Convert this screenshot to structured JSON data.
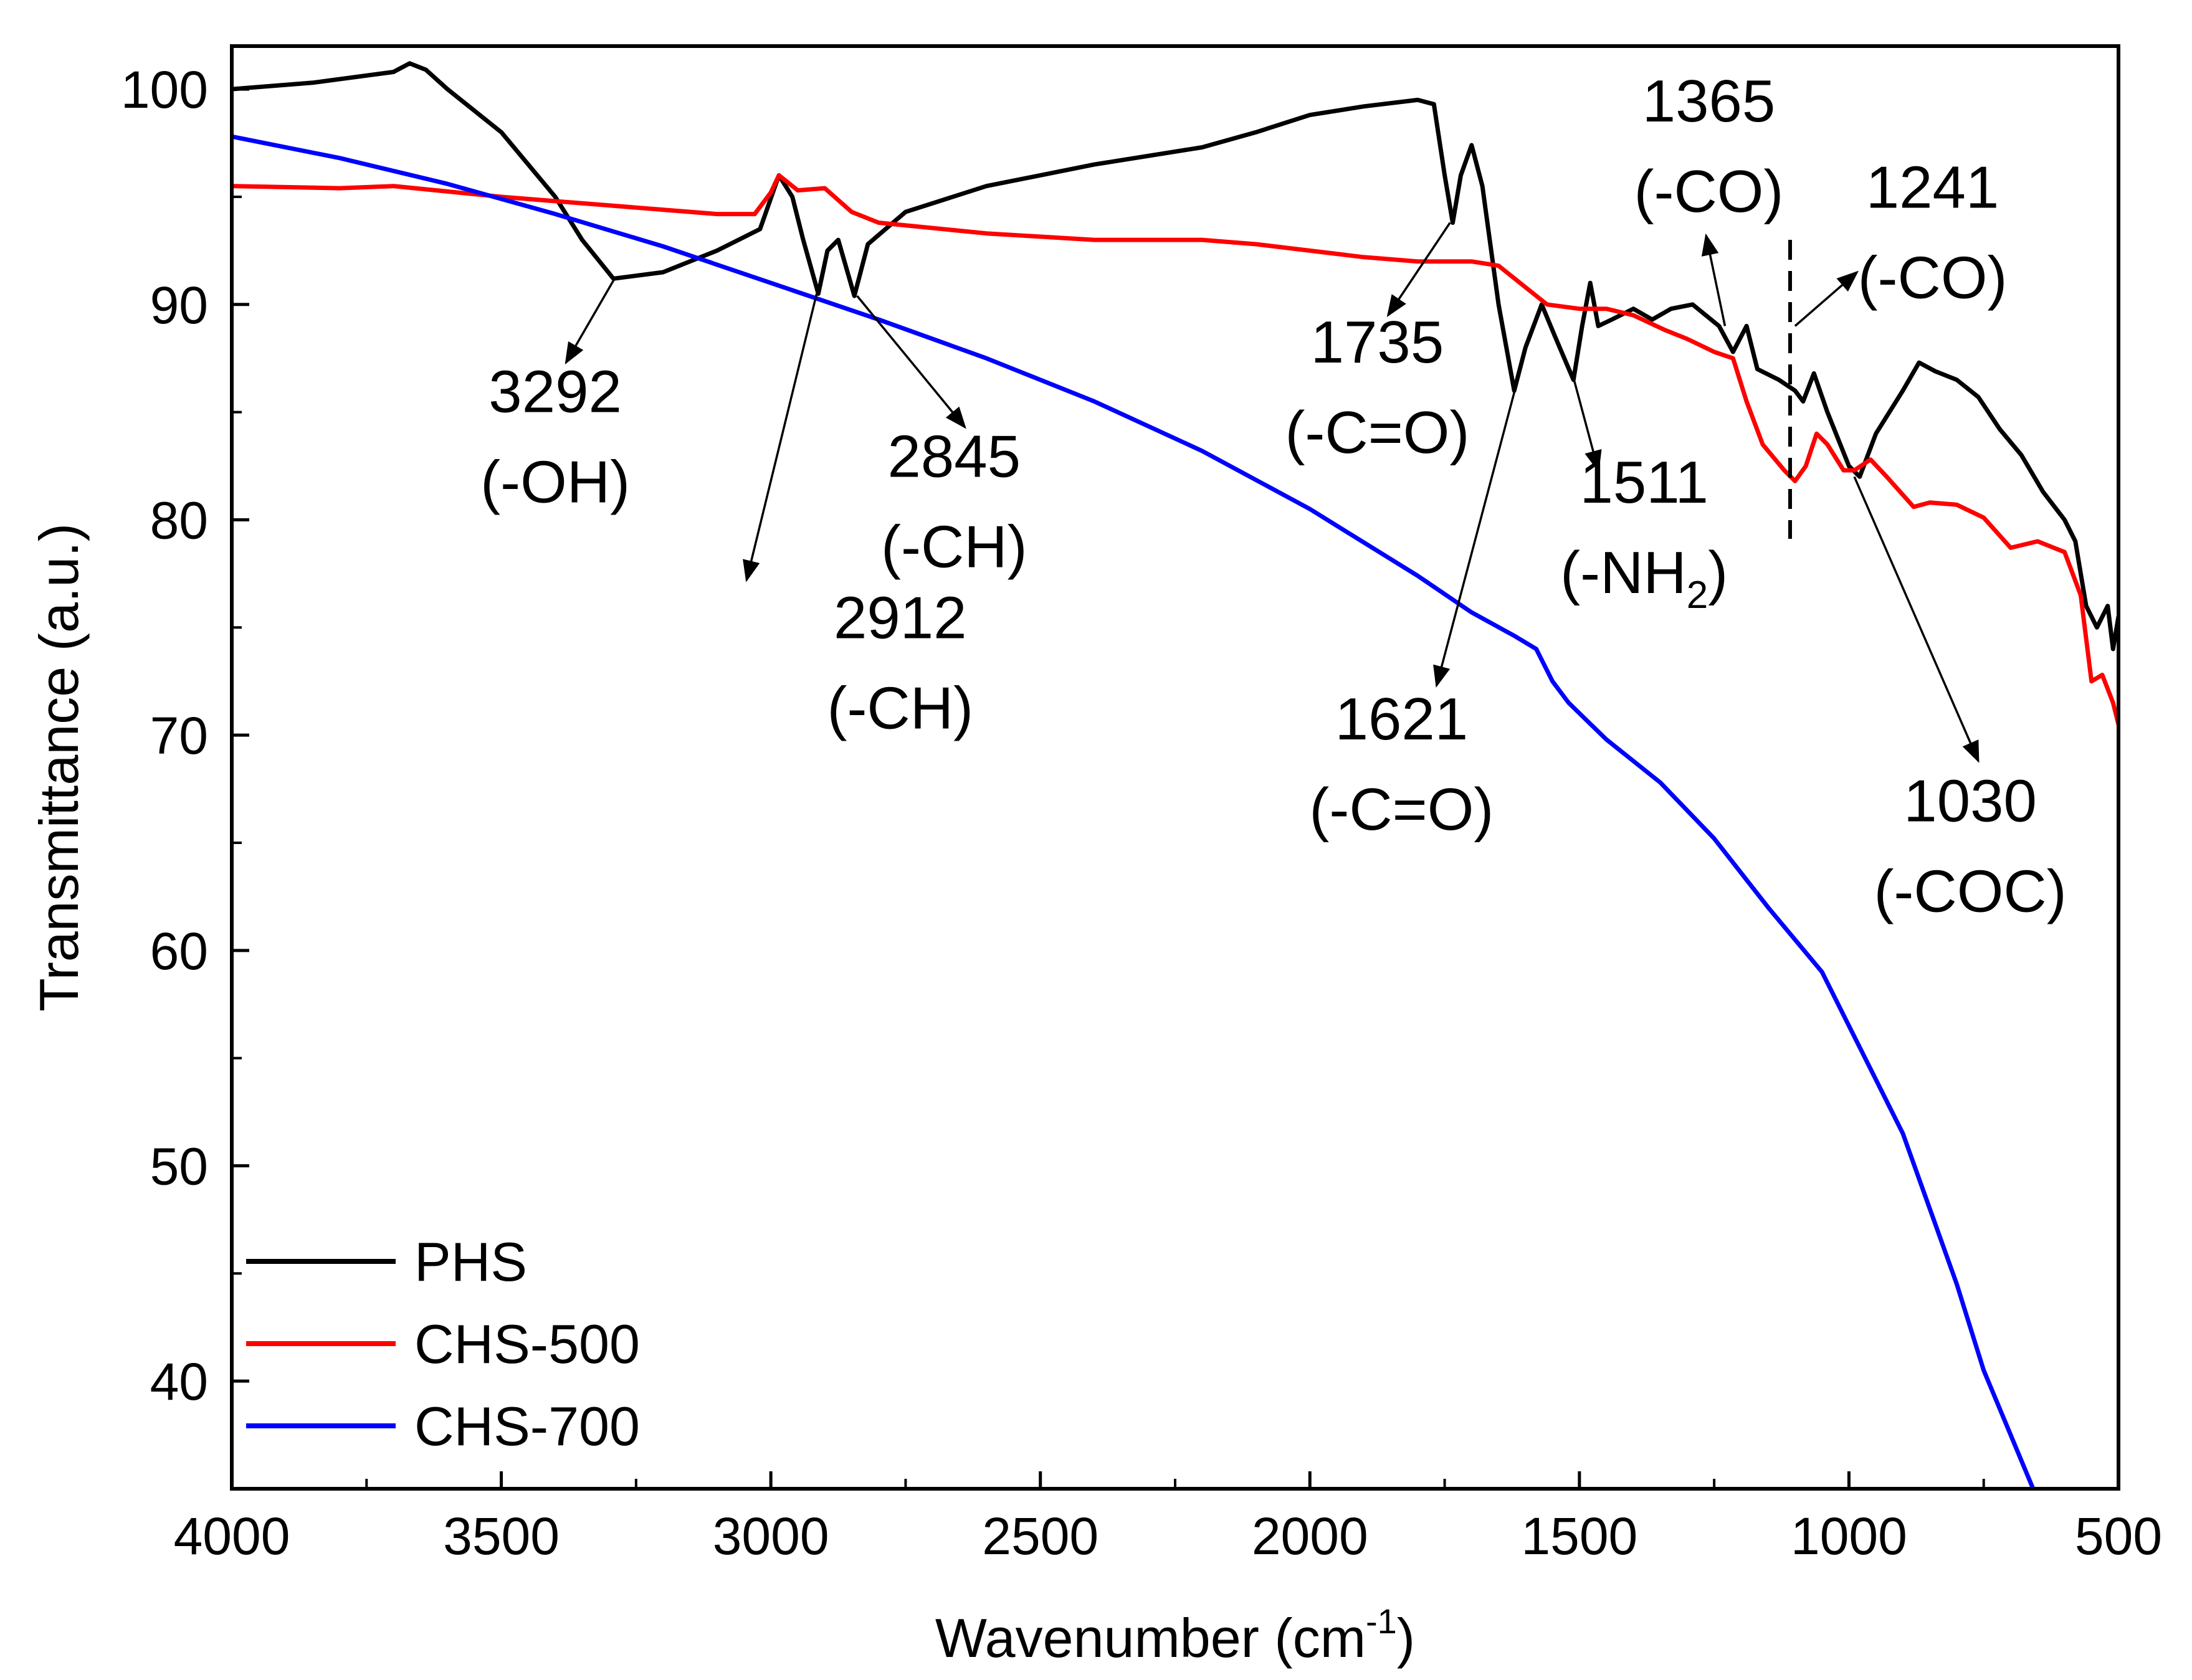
{
  "chart_data": {
    "type": "line",
    "title": "",
    "xlabel": "Wavenumber (cm",
    "xlabel_sup": "-1",
    "xlabel_tail": ")",
    "ylabel": "Transmittance (a.u.)",
    "xlim": [
      4000,
      500
    ],
    "ylim": [
      35,
      102
    ],
    "x_reversed": true,
    "grid": false,
    "x_ticks": [
      4000,
      3500,
      3000,
      2500,
      2000,
      1500,
      1000,
      500
    ],
    "y_ticks": [
      40,
      50,
      60,
      70,
      80,
      90,
      100
    ],
    "legend_position": "bottom-left",
    "series": [
      {
        "name": "PHS",
        "color": "#000000",
        "points": [
          [
            4000,
            100
          ],
          [
            3850,
            100.3
          ],
          [
            3700,
            100.8
          ],
          [
            3670,
            101.2
          ],
          [
            3640,
            100.9
          ],
          [
            3600,
            100
          ],
          [
            3500,
            98
          ],
          [
            3400,
            95
          ],
          [
            3350,
            93
          ],
          [
            3292,
            91.2
          ],
          [
            3200,
            91.5
          ],
          [
            3100,
            92.5
          ],
          [
            3020,
            93.5
          ],
          [
            2985,
            96
          ],
          [
            2960,
            95
          ],
          [
            2940,
            93
          ],
          [
            2912,
            90.5
          ],
          [
            2895,
            92.5
          ],
          [
            2875,
            93
          ],
          [
            2845,
            90.4
          ],
          [
            2820,
            92.8
          ],
          [
            2750,
            94.3
          ],
          [
            2600,
            95.5
          ],
          [
            2400,
            96.5
          ],
          [
            2200,
            97.3
          ],
          [
            2100,
            98
          ],
          [
            2000,
            98.8
          ],
          [
            1900,
            99.2
          ],
          [
            1800,
            99.5
          ],
          [
            1770,
            99.3
          ],
          [
            1750,
            96
          ],
          [
            1735,
            93.8
          ],
          [
            1720,
            96
          ],
          [
            1700,
            97.4
          ],
          [
            1680,
            95.5
          ],
          [
            1650,
            90
          ],
          [
            1621,
            86
          ],
          [
            1600,
            88
          ],
          [
            1570,
            90
          ],
          [
            1545,
            88.5
          ],
          [
            1511,
            86.5
          ],
          [
            1495,
            89
          ],
          [
            1480,
            91
          ],
          [
            1465,
            89
          ],
          [
            1440,
            89.3
          ],
          [
            1400,
            89.8
          ],
          [
            1365,
            89.3
          ],
          [
            1330,
            89.8
          ],
          [
            1290,
            90
          ],
          [
            1241,
            89
          ],
          [
            1215,
            87.8
          ],
          [
            1190,
            89
          ],
          [
            1170,
            87
          ],
          [
            1130,
            86.5
          ],
          [
            1100,
            86
          ],
          [
            1085,
            85.5
          ],
          [
            1065,
            86.8
          ],
          [
            1040,
            85
          ],
          [
            1000,
            82.5
          ],
          [
            980,
            82
          ],
          [
            950,
            84
          ],
          [
            900,
            86
          ],
          [
            870,
            87.3
          ],
          [
            840,
            86.9
          ],
          [
            800,
            86.5
          ],
          [
            760,
            85.7
          ],
          [
            720,
            84.2
          ],
          [
            680,
            83
          ],
          [
            640,
            81.3
          ],
          [
            600,
            80
          ],
          [
            580,
            79
          ],
          [
            560,
            76
          ],
          [
            540,
            75
          ],
          [
            520,
            76
          ],
          [
            510,
            74
          ],
          [
            500,
            75.5
          ]
        ]
      },
      {
        "name": "CHS-500",
        "color": "#ff0000",
        "points": [
          [
            4000,
            95.5
          ],
          [
            3800,
            95.4
          ],
          [
            3700,
            95.5
          ],
          [
            3500,
            95
          ],
          [
            3300,
            94.6
          ],
          [
            3100,
            94.2
          ],
          [
            3030,
            94.2
          ],
          [
            3000,
            95.2
          ],
          [
            2985,
            96
          ],
          [
            2950,
            95.3
          ],
          [
            2900,
            95.4
          ],
          [
            2850,
            94.3
          ],
          [
            2800,
            93.8
          ],
          [
            2600,
            93.3
          ],
          [
            2400,
            93
          ],
          [
            2200,
            93
          ],
          [
            2100,
            92.8
          ],
          [
            2000,
            92.5
          ],
          [
            1900,
            92.2
          ],
          [
            1800,
            92
          ],
          [
            1700,
            92
          ],
          [
            1650,
            91.8
          ],
          [
            1600,
            90.8
          ],
          [
            1560,
            90
          ],
          [
            1500,
            89.8
          ],
          [
            1450,
            89.8
          ],
          [
            1400,
            89.5
          ],
          [
            1340,
            88.8
          ],
          [
            1300,
            88.4
          ],
          [
            1250,
            87.8
          ],
          [
            1215,
            87.5
          ],
          [
            1190,
            85.5
          ],
          [
            1160,
            83.5
          ],
          [
            1120,
            82.3
          ],
          [
            1100,
            81.8
          ],
          [
            1080,
            82.5
          ],
          [
            1060,
            84
          ],
          [
            1040,
            83.5
          ],
          [
            1010,
            82.3
          ],
          [
            990,
            82.3
          ],
          [
            960,
            82.8
          ],
          [
            930,
            82
          ],
          [
            880,
            80.6
          ],
          [
            850,
            80.8
          ],
          [
            800,
            80.7
          ],
          [
            750,
            80.1
          ],
          [
            700,
            78.7
          ],
          [
            650,
            79
          ],
          [
            600,
            78.5
          ],
          [
            570,
            76.5
          ],
          [
            550,
            72.5
          ],
          [
            530,
            72.8
          ],
          [
            510,
            71.5
          ],
          [
            500,
            70.5
          ]
        ]
      },
      {
        "name": "CHS-700",
        "color": "#0000ff",
        "points": [
          [
            4000,
            97.8
          ],
          [
            3800,
            96.8
          ],
          [
            3600,
            95.6
          ],
          [
            3400,
            94.2
          ],
          [
            3200,
            92.7
          ],
          [
            3000,
            91
          ],
          [
            2800,
            89.3
          ],
          [
            2600,
            87.5
          ],
          [
            2400,
            85.5
          ],
          [
            2200,
            83.2
          ],
          [
            2000,
            80.5
          ],
          [
            1800,
            77.4
          ],
          [
            1700,
            75.7
          ],
          [
            1620,
            74.6
          ],
          [
            1580,
            74
          ],
          [
            1550,
            72.5
          ],
          [
            1520,
            71.5
          ],
          [
            1450,
            69.8
          ],
          [
            1350,
            67.8
          ],
          [
            1250,
            65.2
          ],
          [
            1150,
            62
          ],
          [
            1050,
            59
          ],
          [
            1000,
            56.5
          ],
          [
            950,
            54
          ],
          [
            900,
            51.5
          ],
          [
            850,
            48
          ],
          [
            800,
            44.5
          ],
          [
            750,
            40.5
          ],
          [
            700,
            37.5
          ],
          [
            650,
            34.5
          ]
        ]
      }
    ],
    "annotations": [
      {
        "id": "3292",
        "value": "3292",
        "group": "(-OH)",
        "tip": [
          3290,
          91.2
        ],
        "at": [
          3400,
          85
        ]
      },
      {
        "id": "2912",
        "value": "2912",
        "group": "(-CH)",
        "tip": [
          2915,
          90.5
        ],
        "at": [
          2760,
          74.5
        ]
      },
      {
        "id": "2845",
        "value": "2845",
        "group": "(-CH)",
        "tip": [
          2840,
          90.4
        ],
        "at": [
          2660,
          82
        ]
      },
      {
        "id": "1735",
        "value": "1735",
        "group": "(-C=O)",
        "tip": [
          1740,
          93.8
        ],
        "at": [
          1875,
          87.3
        ]
      },
      {
        "id": "1621",
        "value": "1621",
        "group": "(-C=O)",
        "tip": [
          1620,
          86
        ],
        "at": [
          1830,
          69.8
        ]
      },
      {
        "id": "1511",
        "value": "1511",
        "group": "(-NH",
        "group_sub": "2",
        "group_tail": ")",
        "tip": [
          1510,
          86.5
        ],
        "at": [
          1380,
          80.8
        ]
      },
      {
        "id": "1365",
        "value": "1365",
        "group": "(-CO)",
        "tip": [
          1230,
          89
        ],
        "at": [
          1260,
          98.5
        ]
      },
      {
        "id": "1241",
        "value": "1241",
        "group": "(-CO)",
        "tip": [
          1100,
          89
        ],
        "at": [
          845,
          94.5
        ]
      },
      {
        "id": "1030",
        "value": "1030",
        "group": "(-COC)",
        "tip": [
          990,
          82
        ],
        "at": [
          775,
          66
        ]
      }
    ]
  }
}
